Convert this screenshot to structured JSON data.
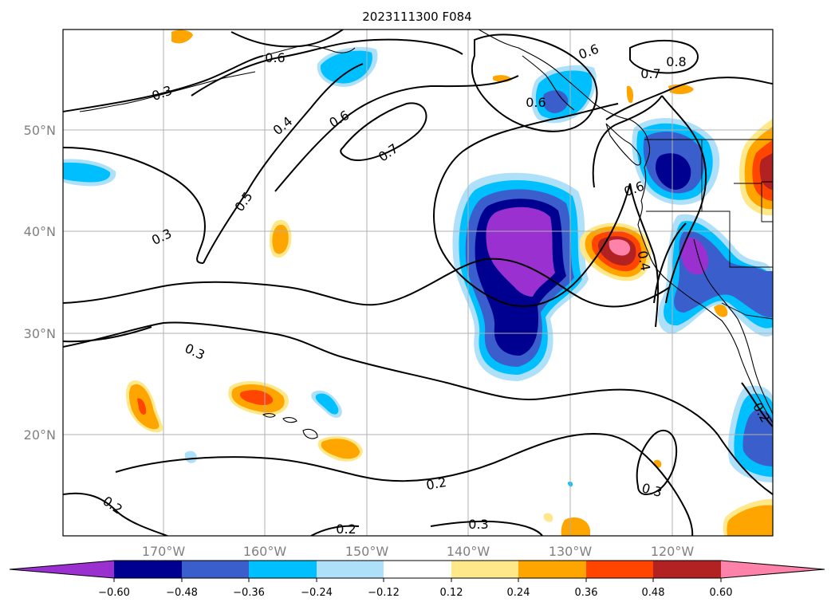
{
  "title": "2023111300 F084",
  "map": {
    "lat_labels": [
      "50°N",
      "40°N",
      "30°N",
      "20°N"
    ],
    "lon_labels": [
      "170°W",
      "160°W",
      "150°W",
      "140°W",
      "130°W",
      "120°W"
    ],
    "grid": true
  },
  "contour_labels": [
    "0.6",
    "0.3",
    "0.4",
    "0.6",
    "0.7",
    "0.5",
    "0.3",
    "0.3",
    "0.2",
    "0.2",
    "0.3",
    "0.2",
    "0.6",
    "0.6",
    "0.7",
    "0.8",
    "0.6",
    "0.4",
    "0.2",
    "0.3"
  ],
  "colorbar": {
    "ticks": [
      "−0.60",
      "−0.48",
      "−0.36",
      "−0.24",
      "−0.12",
      "0.12",
      "0.24",
      "0.36",
      "0.48",
      "0.60"
    ],
    "colors": {
      "lt_060": "#9b30d0",
      "m060_m048": "#000090",
      "m048_m036": "#3a5fcd",
      "m036_m024": "#00bfff",
      "m024_m012": "#aee0fa",
      "m012_012": "#ffffff",
      "p012_p024": "#ffe88a",
      "p024_p036": "#ffa500",
      "p036_p048": "#ff4500",
      "p048_p060": "#b22222",
      "gt_060": "#ff82ab"
    }
  }
}
